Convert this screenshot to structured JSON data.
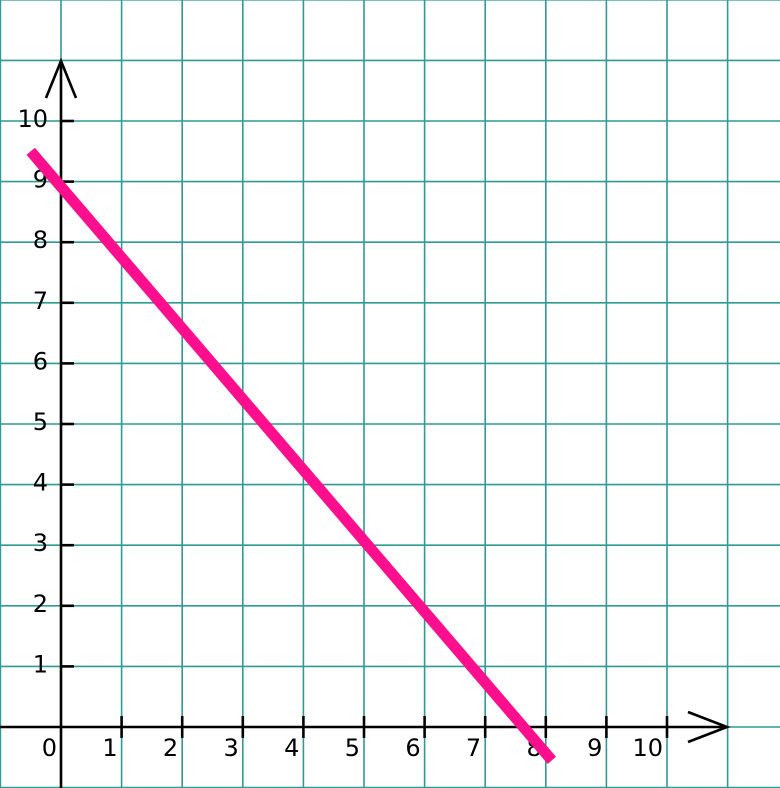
{
  "chart_data": {
    "type": "line",
    "x_tick_labels": [
      "0",
      "1",
      "2",
      "3",
      "4",
      "5",
      "6",
      "7",
      "8",
      "9",
      "10"
    ],
    "y_tick_labels": [
      "1",
      "2",
      "3",
      "4",
      "5",
      "6",
      "7",
      "8",
      "9",
      "10"
    ],
    "xlim": [
      -1,
      11
    ],
    "ylim": [
      -1,
      12
    ],
    "grid": true,
    "series": [
      {
        "x": [
          -0.5,
          8.1
        ],
        "y": [
          9.5,
          -0.55
        ],
        "color": "#ff0e8e"
      }
    ],
    "colors": {
      "grid": "#2f9a96",
      "axis": "#000000",
      "line": "#ff0e8e"
    }
  }
}
